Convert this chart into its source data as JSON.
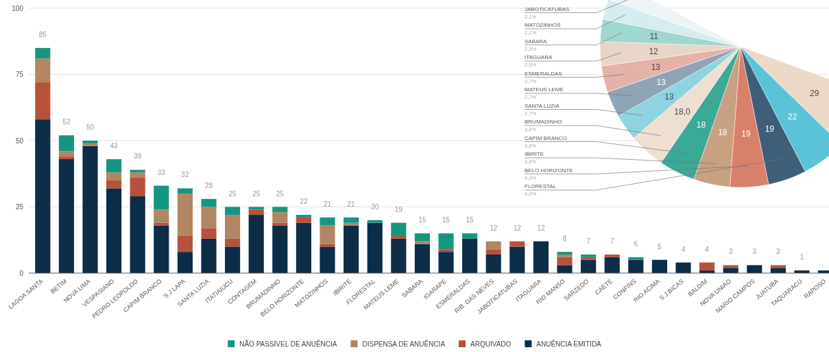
{
  "chart_data": [
    {
      "type": "bar",
      "stacked": true,
      "categories": [
        "LAGOA SANTA",
        "BETIM",
        "NOVA LIMA",
        "VESPASIANO",
        "PEDRO LEOPOLDO",
        "CAPIM BRANCO",
        "S J LAPA",
        "SANTA LUZIA",
        "ITATIAIUCU",
        "CONTAGEM",
        "BRUMADINHO",
        "BELO HORIZONTE",
        "MATOZINHOS",
        "IBIRITE",
        "FLORESTAL",
        "MATEUS LEME",
        "SABARA",
        "IGARAPE",
        "ESMERALDAS",
        "RIB. DAS NEVES",
        "JABOTICATUBAS",
        "ITAGUARA",
        "RIO MANSO",
        "SARZEDO",
        "CAETE",
        "CONFINS",
        "RIO ACIMA",
        "S J BICAS",
        "BALDIM",
        "NOVA UNIAO",
        "MARIO CAMPOS",
        "JUATUBA",
        "TAQUARACU",
        "RAPOSO"
      ],
      "series": [
        {
          "name": "ANUÊNCIA EMITIDA",
          "color": "#0b2d48",
          "values": [
            58,
            43,
            48,
            32,
            29,
            18,
            8,
            13,
            10,
            22,
            18,
            19,
            10,
            18,
            19,
            13,
            11,
            8,
            13,
            7,
            10,
            12,
            3,
            5,
            6,
            5,
            5,
            4,
            1,
            2,
            3,
            2,
            1,
            1
          ]
        },
        {
          "name": "ARQUIVADO",
          "color": "#b8513a",
          "values": [
            14,
            1,
            0,
            3,
            7,
            1,
            6,
            4,
            3,
            2,
            1,
            2,
            1,
            0,
            0,
            1,
            0,
            1,
            0,
            2,
            2,
            0,
            3,
            1,
            1,
            0,
            0,
            0,
            3,
            1,
            0,
            1,
            0,
            0
          ]
        },
        {
          "name": "DISPENSA DE ANUÊNCIA",
          "color": "#b08663",
          "values": [
            9,
            2,
            1,
            3,
            2,
            5,
            16,
            8,
            9,
            0,
            4,
            0,
            7,
            1,
            0,
            0,
            1,
            0,
            0,
            3,
            0,
            0,
            1,
            0,
            0,
            0,
            0,
            0,
            0,
            0,
            0,
            0,
            0,
            0
          ]
        },
        {
          "name": "NÃO PASSÍVEL DE ANUÊNCIA",
          "color": "#17967f",
          "values": [
            4,
            6,
            1,
            5,
            1,
            9,
            2,
            3,
            3,
            1,
            2,
            1,
            3,
            2,
            1,
            5,
            3,
            6,
            2,
            0,
            0,
            0,
            1,
            1,
            0,
            1,
            0,
            0,
            0,
            0,
            0,
            0,
            0,
            0
          ]
        }
      ],
      "totals": [
        "85",
        "52",
        "50",
        "43",
        "39",
        "33",
        "32",
        "28",
        "25",
        "25",
        "25",
        "22",
        "21",
        "21",
        "20",
        "19",
        "15",
        "15",
        "15",
        "12",
        "12",
        "12",
        "8",
        "7",
        "7",
        "6",
        "5",
        "4",
        "4",
        "3",
        "3",
        "3",
        "1",
        null
      ],
      "ylim": [
        0,
        100
      ],
      "yticks": [
        0,
        25,
        50,
        75,
        100
      ],
      "grid": "y",
      "legend": "bottom"
    },
    {
      "type": "pie",
      "categories": [
        null,
        null,
        "FLORESTAL",
        "BELO HORIZONTE",
        "IBIRITE",
        "CAPIM BRANCO",
        "BRUMADINHO",
        "SANTA LUZIA",
        "MATEUS LEME",
        "ESMERALDAS",
        "ITAGUARA",
        "SABARA",
        "MATOZINHOS",
        "JABOTICATUBAS"
      ],
      "values": [
        29,
        22,
        19,
        19,
        18,
        18,
        18,
        13,
        13,
        13,
        12,
        11,
        10,
        10
      ],
      "colors": [
        "#ecd9c8",
        "#5bc3d8",
        "#3f5f78",
        "#d9806a",
        "#c9a080",
        "#3aa996",
        "#efdfd0",
        "#8fd3e0",
        "#8fa5b5",
        "#e3b3a8",
        "#e8d5c8",
        "#9fd8d0",
        "#d5ecf0",
        "#eef4f6"
      ],
      "value_labels": [
        "29",
        "22",
        "19",
        "19",
        "18",
        "18",
        "18,0",
        "13",
        "13",
        "13",
        "12",
        "11",
        null,
        null
      ],
      "annotations": [
        "4,0%",
        "4,0%",
        "3,8%",
        "3,8%",
        "3,8%",
        "2,7%",
        "2,7%",
        "2,7%",
        "2,5%",
        "2,3%",
        "2,1%",
        "2,1%"
      ]
    }
  ]
}
